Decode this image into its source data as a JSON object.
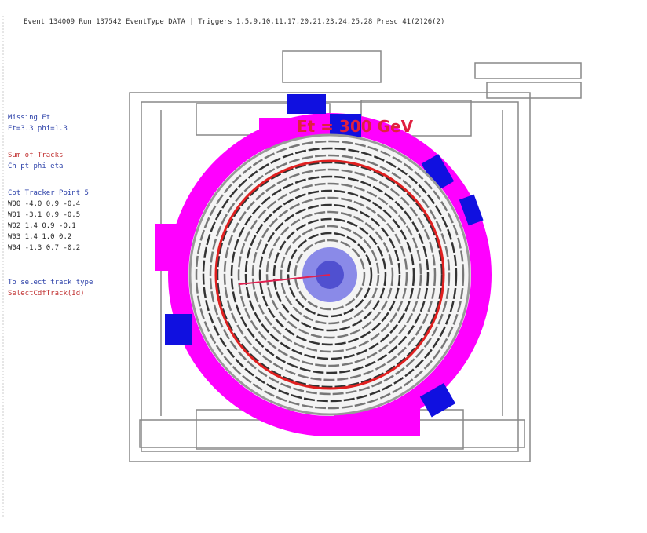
{
  "header": {
    "run_info": "Event 134009  Run 137542  EventType DATA | Triggers 1,5,9,10,11,17,20,21,23,24,25,28 Presc 41(2)26(2)"
  },
  "left_panel": {
    "missing_title": "Missing Et",
    "missing_value": "Et=3.3 phi=1.3",
    "sum_title": "Sum of Tracks",
    "sum_header": "Ch   pt   phi   eta",
    "cot_title": "Cot Tracker Point 5",
    "cot_rows": [
      "W00   -4.0  0.9 -0.4",
      "W01   -3.1  0.9 -0.5",
      "W02    1.4  0.9 -0.1",
      "W03    1.4  1.0  0.2",
      "W04   -1.3  0.7 -0.2"
    ],
    "select_hint": "To select track type",
    "select_cmd": "SelectCdfTrack(Id)"
  },
  "energy_label": "Et = 300 GeV"
}
